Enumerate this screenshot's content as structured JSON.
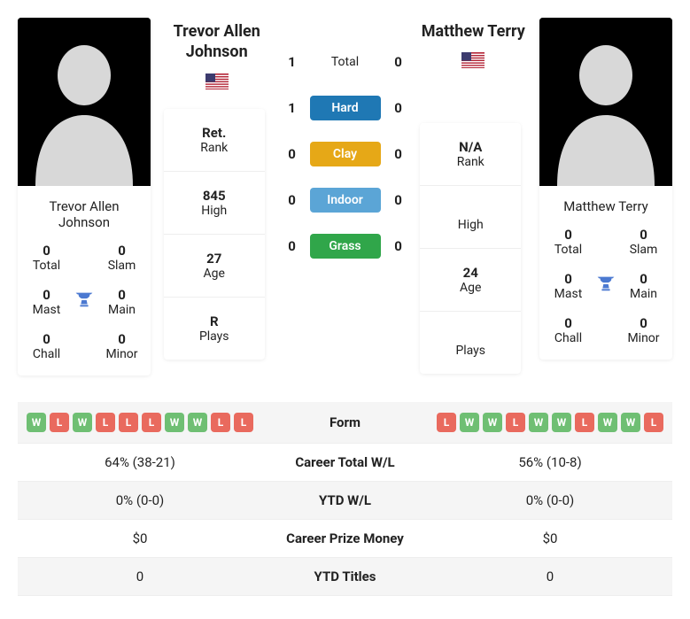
{
  "h2h": {
    "rows": [
      {
        "l": 1,
        "r": 0,
        "lbl": "Total",
        "cls": "total"
      },
      {
        "l": 1,
        "r": 0,
        "lbl": "Hard",
        "cls": "hard"
      },
      {
        "l": 0,
        "r": 0,
        "lbl": "Clay",
        "cls": "clay"
      },
      {
        "l": 0,
        "r": 0,
        "lbl": "Indoor",
        "cls": "indoor"
      },
      {
        "l": 0,
        "r": 0,
        "lbl": "Grass",
        "cls": "grass"
      }
    ]
  },
  "p1": {
    "name": "Trevor Allen Johnson",
    "tiles": [
      {
        "v": "0",
        "l": "Total"
      },
      {
        "v": "0",
        "l": "Slam"
      },
      {
        "v": "0",
        "l": "Mast"
      },
      {
        "v": "0",
        "l": "Main"
      },
      {
        "v": "0",
        "l": "Chall"
      },
      {
        "v": "0",
        "l": "Minor"
      }
    ],
    "stats": [
      {
        "v": "Ret.",
        "l": "Rank"
      },
      {
        "v": "845",
        "l": "High"
      },
      {
        "v": "27",
        "l": "Age"
      },
      {
        "v": "R",
        "l": "Plays"
      }
    ]
  },
  "p2": {
    "name": "Matthew Terry",
    "tiles": [
      {
        "v": "0",
        "l": "Total"
      },
      {
        "v": "0",
        "l": "Slam"
      },
      {
        "v": "0",
        "l": "Mast"
      },
      {
        "v": "0",
        "l": "Main"
      },
      {
        "v": "0",
        "l": "Chall"
      },
      {
        "v": "0",
        "l": "Minor"
      }
    ],
    "stats": [
      {
        "v": "N/A",
        "l": "Rank"
      },
      {
        "v": "",
        "l": "High"
      },
      {
        "v": "24",
        "l": "Age"
      },
      {
        "v": "",
        "l": "Plays"
      }
    ]
  },
  "form": {
    "label": "Form",
    "p1": [
      "W",
      "L",
      "W",
      "L",
      "L",
      "L",
      "W",
      "W",
      "L",
      "L"
    ],
    "p2": [
      "L",
      "W",
      "W",
      "L",
      "W",
      "W",
      "L",
      "W",
      "W",
      "L"
    ]
  },
  "compare": [
    {
      "l": "64% (38-21)",
      "m": "Career Total W/L",
      "r": "56% (10-8)"
    },
    {
      "l": "0% (0-0)",
      "m": "YTD W/L",
      "r": "0% (0-0)"
    },
    {
      "l": "$0",
      "m": "Career Prize Money",
      "r": "$0"
    },
    {
      "l": "0",
      "m": "YTD Titles",
      "r": "0"
    }
  ],
  "colors": {
    "win": "#6fbf73",
    "loss": "#e96a5e",
    "hard": "#1f78b4",
    "clay": "#e6a817",
    "indoor": "#5ba5d6",
    "grass": "#30a64a",
    "trophy": "#4b79d1"
  }
}
